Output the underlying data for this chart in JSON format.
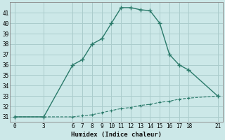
{
  "xlabel": "Humidex (Indice chaleur)",
  "bg_color": "#cce8e8",
  "grid_color": "#aacccc",
  "line_color": "#2a7a6a",
  "line1_x": [
    0,
    3,
    6,
    7,
    8,
    9,
    10,
    11,
    12,
    13,
    14,
    15,
    16,
    17,
    18,
    21
  ],
  "line1_y": [
    31,
    31,
    36,
    36.5,
    38,
    38.5,
    40,
    41.5,
    41.5,
    41.3,
    41.2,
    40,
    37,
    36,
    35.5,
    33
  ],
  "line2_x": [
    0,
    3,
    6,
    7,
    8,
    9,
    10,
    11,
    12,
    13,
    14,
    15,
    16,
    17,
    18,
    21
  ],
  "line2_y": [
    31,
    31,
    31,
    31.1,
    31.2,
    31.4,
    31.6,
    31.8,
    31.9,
    32.1,
    32.2,
    32.4,
    32.5,
    32.7,
    32.8,
    33
  ],
  "xticks": [
    0,
    3,
    6,
    7,
    8,
    9,
    10,
    11,
    12,
    13,
    14,
    15,
    16,
    17,
    18,
    21
  ],
  "yticks": [
    31,
    32,
    33,
    34,
    35,
    36,
    37,
    38,
    39,
    40,
    41
  ],
  "xlim": [
    -0.5,
    21.5
  ],
  "ylim": [
    30.5,
    42.0
  ]
}
